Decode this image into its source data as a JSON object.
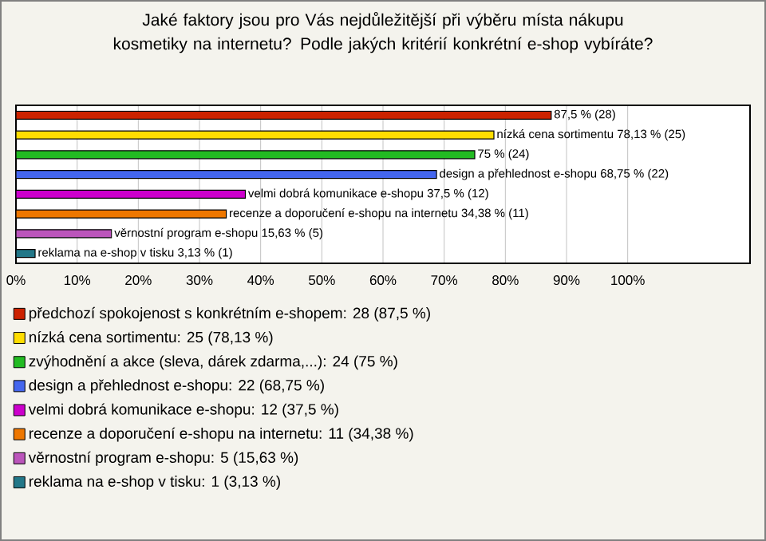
{
  "chart_data": {
    "type": "bar",
    "orientation": "horizontal",
    "title": "Jaké faktory jsou pro Vás nejdůležitější při výběru místa nákupu kosmetiky na internetu? Podle jakých kritérií konkrétní e-shop vybíráte?",
    "categories": [
      null,
      null,
      null,
      null,
      null,
      null,
      null,
      null
    ],
    "series": [
      {
        "name": "předchozí spokojenost s konkrétním e-shopem: 28 (87,5 %)",
        "color": "#cc2200",
        "values": [
          87.5,
          null,
          null,
          null,
          null,
          null,
          null,
          null
        ],
        "value_labels": [
          "87,5 % (28)",
          null,
          null,
          null,
          null,
          null,
          null,
          null
        ]
      },
      {
        "name": "nízká cena sortimentu: 25 (78,13 %)",
        "color": "#ffdd00",
        "values": [
          null,
          78.13,
          null,
          null,
          null,
          null,
          null,
          null
        ],
        "value_labels": [
          null,
          "nízká cena sortimentu 78,13 % (25)",
          null,
          null,
          null,
          null,
          null,
          null
        ]
      },
      {
        "name": "zvýhodnění a akce (sleva, dárek zdarma,...): 24 (75 %)",
        "color": "#22bb22",
        "values": [
          null,
          null,
          75,
          null,
          null,
          null,
          null,
          null
        ],
        "value_labels": [
          null,
          null,
          "75 % (24)",
          null,
          null,
          null,
          null,
          null
        ]
      },
      {
        "name": "design a přehlednost e-shopu: 22 (68,75 %)",
        "color": "#4466ee",
        "values": [
          null,
          null,
          null,
          68.75,
          null,
          null,
          null,
          null
        ],
        "value_labels": [
          null,
          null,
          null,
          "design a přehlednost e-shopu 68,75 % (22)",
          null,
          null,
          null,
          null
        ]
      },
      {
        "name": "velmi dobrá komunikace e-shopu: 12 (37,5 %)",
        "color": "#cc00cc",
        "values": [
          null,
          null,
          null,
          null,
          37.5,
          null,
          null,
          null
        ],
        "value_labels": [
          null,
          null,
          null,
          null,
          "velmi dobrá komunikace e-shopu 37,5 % (12)",
          null,
          null,
          null
        ]
      },
      {
        "name": "recenze a doporučení e-shopu na internetu: 11 (34,38 %)",
        "color": "#ee7700",
        "values": [
          null,
          null,
          null,
          null,
          null,
          34.38,
          null,
          null
        ],
        "value_labels": [
          null,
          null,
          null,
          null,
          null,
          "recenze a doporučení e-shopu na internetu 34,38 % (11)",
          null,
          null
        ]
      },
      {
        "name": "věrnostní program e-shopu: 5 (15,63 %)",
        "color": "#bb55bb",
        "values": [
          null,
          null,
          null,
          null,
          null,
          null,
          15.63,
          null
        ],
        "value_labels": [
          null,
          null,
          null,
          null,
          null,
          null,
          "věrnostní program e-shopu 15,63 % (5)",
          null
        ]
      },
      {
        "name": "reklama na e-shop v tisku: 1 (3,13 %)",
        "color": "#227788",
        "values": [
          null,
          null,
          null,
          null,
          null,
          null,
          null,
          3.13
        ],
        "value_labels": [
          null,
          null,
          null,
          null,
          null,
          null,
          null,
          "reklama na e-shop v tisku 3,13 % (1)"
        ]
      }
    ],
    "xlim": [
      0,
      120
    ],
    "xticks": [
      {
        "value": 0,
        "label": "0%"
      },
      {
        "value": 10,
        "label": "10%"
      },
      {
        "value": 20,
        "label": "20%"
      },
      {
        "value": 30,
        "label": "30%"
      },
      {
        "value": 40,
        "label": "40%"
      },
      {
        "value": 50,
        "label": "50%"
      },
      {
        "value": 60,
        "label": "60%"
      },
      {
        "value": 70,
        "label": "70%"
      },
      {
        "value": 80,
        "label": "80%"
      },
      {
        "value": 90,
        "label": "90%"
      },
      {
        "value": 100,
        "label": "100%"
      }
    ],
    "grid": "x",
    "legend": "bottom"
  }
}
